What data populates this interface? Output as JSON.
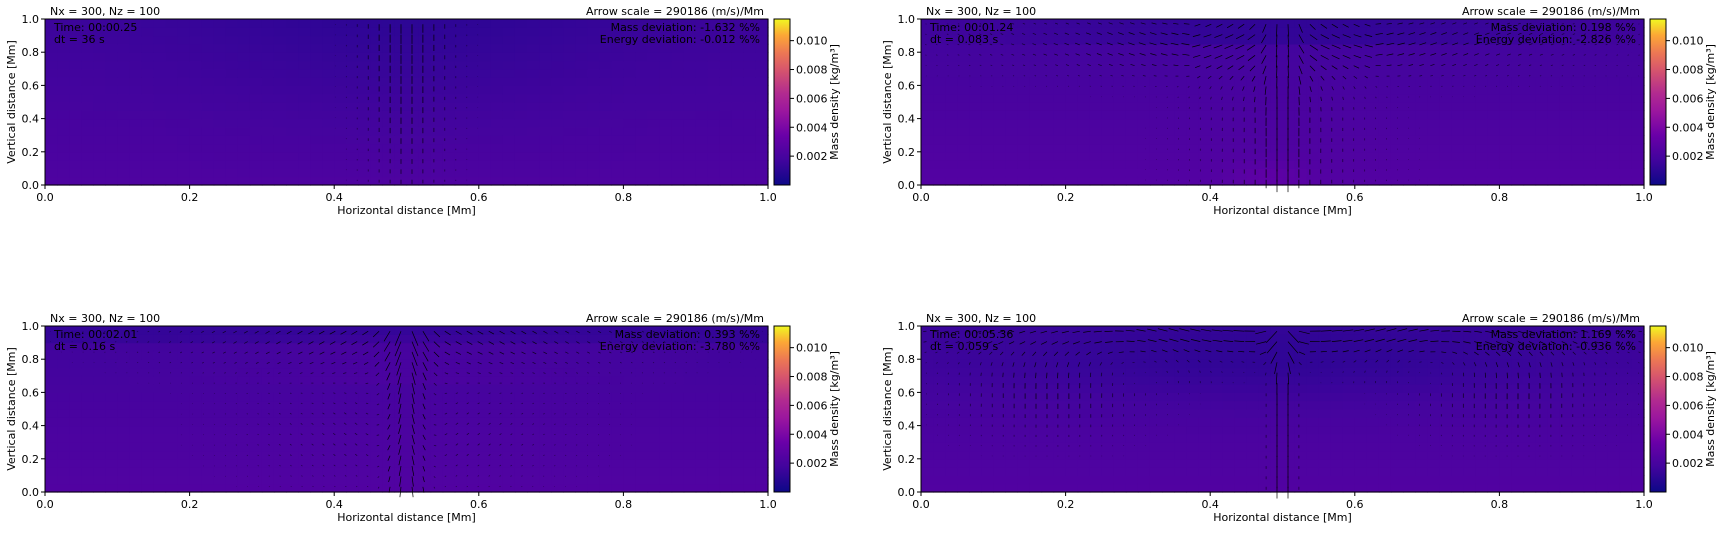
{
  "chart_data": [
    {
      "type": "heatmap",
      "title_left": "Nx = 300, Nz = 100",
      "title_right": "Arrow scale = 290186 (m/s)/Mm",
      "xlabel": "Horizontal distance [Mm]",
      "ylabel": "Vertical distance [Mm]",
      "xlim": [
        0,
        1
      ],
      "ylim": [
        0,
        1
      ],
      "xticks": [
        "0.0",
        "0.2",
        "0.4",
        "0.6",
        "0.8",
        "1.0"
      ],
      "yticks": [
        "0.0",
        "0.2",
        "0.4",
        "0.6",
        "0.8",
        "1.0"
      ],
      "colorbar": {
        "label": "Mass density [kg/m³]",
        "range": [
          0,
          0.0115
        ],
        "ticks": [
          "0.002",
          "0.004",
          "0.006",
          "0.008",
          "0.010"
        ],
        "colormap": "plasma"
      },
      "annotations_left": [
        "Time: 00:00.25",
        "dt = 36 s"
      ],
      "annotations_right": [
        "Mass deviation: -1.632 %%",
        "Energy deviation: -0.012 %%"
      ],
      "density_range": [
        0.0009,
        0.0028
      ],
      "flow_pattern": "central-jet"
    },
    {
      "type": "heatmap",
      "title_left": "Nx = 300, Nz = 100",
      "title_right": "Arrow scale = 290186 (m/s)/Mm",
      "xlabel": "Horizontal distance [Mm]",
      "ylabel": "Vertical distance [Mm]",
      "xlim": [
        0,
        1
      ],
      "ylim": [
        0,
        1
      ],
      "xticks": [
        "0.0",
        "0.2",
        "0.4",
        "0.6",
        "0.8",
        "1.0"
      ],
      "yticks": [
        "0.0",
        "0.2",
        "0.4",
        "0.6",
        "0.8",
        "1.0"
      ],
      "colorbar": {
        "label": "Mass density [kg/m³]",
        "range": [
          0,
          0.0115
        ],
        "ticks": [
          "0.002",
          "0.004",
          "0.006",
          "0.008",
          "0.010"
        ],
        "colormap": "plasma"
      },
      "annotations_left": [
        "Time: 00:01.24",
        "dt = 0.083 s"
      ],
      "annotations_right": [
        "Mass deviation: 0.198 %%",
        "Energy deviation: -2.826 %%"
      ],
      "density_range": [
        0.0009,
        0.0031
      ],
      "flow_pattern": "two-cell-top"
    },
    {
      "type": "heatmap",
      "title_left": "Nx = 300, Nz = 100",
      "title_right": "Arrow scale = 290186 (m/s)/Mm",
      "xlabel": "Horizontal distance [Mm]",
      "ylabel": "Vertical distance [Mm]",
      "xlim": [
        0,
        1
      ],
      "ylim": [
        0,
        1
      ],
      "xticks": [
        "0.0",
        "0.2",
        "0.4",
        "0.6",
        "0.8",
        "1.0"
      ],
      "yticks": [
        "0.0",
        "0.2",
        "0.4",
        "0.6",
        "0.8",
        "1.0"
      ],
      "colorbar": {
        "label": "Mass density [kg/m³]",
        "range": [
          0,
          0.0115
        ],
        "ticks": [
          "0.002",
          "0.004",
          "0.006",
          "0.008",
          "0.010"
        ],
        "colormap": "plasma"
      },
      "annotations_left": [
        "Time: 00:02.01",
        "dt = 0.16 s"
      ],
      "annotations_right": [
        "Mass deviation: 0.393 %%",
        "Energy deviation: -3.780 %%"
      ],
      "density_range": [
        0.0009,
        0.003
      ],
      "flow_pattern": "spreading"
    },
    {
      "type": "heatmap",
      "title_left": "Nx = 300, Nz = 100",
      "title_right": "Arrow scale = 290186 (m/s)/Mm",
      "xlabel": "Horizontal distance [Mm]",
      "ylabel": "Vertical distance [Mm]",
      "xlim": [
        0,
        1
      ],
      "ylim": [
        0,
        1
      ],
      "xticks": [
        "0.0",
        "0.2",
        "0.4",
        "0.6",
        "0.8",
        "1.0"
      ],
      "yticks": [
        "0.0",
        "0.2",
        "0.4",
        "0.6",
        "0.8",
        "1.0"
      ],
      "colorbar": {
        "label": "Mass density [kg/m³]",
        "range": [
          0,
          0.0115
        ],
        "ticks": [
          "0.002",
          "0.004",
          "0.006",
          "0.008",
          "0.010"
        ],
        "colormap": "plasma"
      },
      "annotations_left": [
        "Time: 00:05.36",
        "dt = 0.059 s"
      ],
      "annotations_right": [
        "Mass deviation: 1.169 %%",
        "Energy deviation: -0.936 %%"
      ],
      "density_range": [
        0.0008,
        0.0031
      ],
      "flow_pattern": "full-circulation"
    }
  ]
}
